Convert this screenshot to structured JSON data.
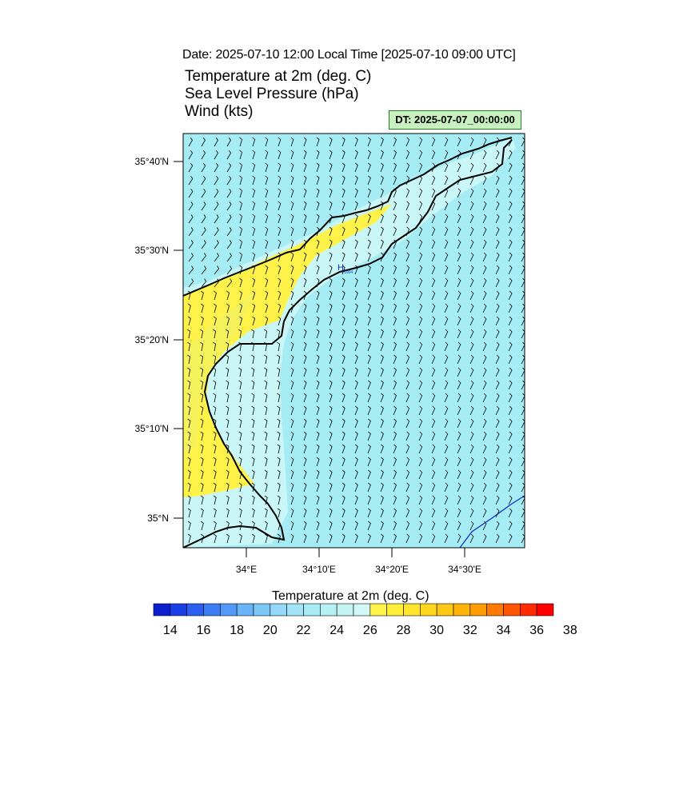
{
  "header": {
    "date_line": "Date: 2025-07-10  12:00 Local Time [2025-07-10  09:00 UTC]",
    "title_lines": [
      "Temperature at 2m   (deg. C)",
      "Sea Level Pressure   (hPa)",
      "Wind   (kts)"
    ],
    "dt_label": "DT: 2025-07-07_00:00:00"
  },
  "map": {
    "lat_labels": [
      "35°40'N",
      "35°30'N",
      "35°20'N",
      "35°10'N",
      "35°N"
    ],
    "lon_labels": [
      "34°E",
      "34°10'E",
      "34°20'E",
      "34°30'E"
    ],
    "pressure_marker": {
      "symbol": "H",
      "value": "1004"
    },
    "colors": {
      "sea": "#a6ecf4",
      "coast_band": "#c9f6f6",
      "land_warm": "#fff34a",
      "isobar": "#1030d0"
    }
  },
  "colorbar": {
    "title": "Temperature at 2m  (deg. C)",
    "ticks": [
      "14",
      "16",
      "18",
      "20",
      "22",
      "24",
      "26",
      "28",
      "30",
      "32",
      "34",
      "36",
      "38"
    ],
    "colors": [
      "#0c1fcf",
      "#1b3fe6",
      "#2c5ef0",
      "#3e7cf5",
      "#529af7",
      "#68b4f8",
      "#7ec8f8",
      "#93d8f8",
      "#a2e4f8",
      "#a8ecf6",
      "#b4f0f4",
      "#c2f4f4",
      "#d2f8f6",
      "#fff34a",
      "#ffee3a",
      "#ffe62c",
      "#ffd81e",
      "#ffc814",
      "#ffb40a",
      "#ff9c06",
      "#ff7a04",
      "#ff5402",
      "#ff2a00",
      "#ff0000"
    ]
  }
}
